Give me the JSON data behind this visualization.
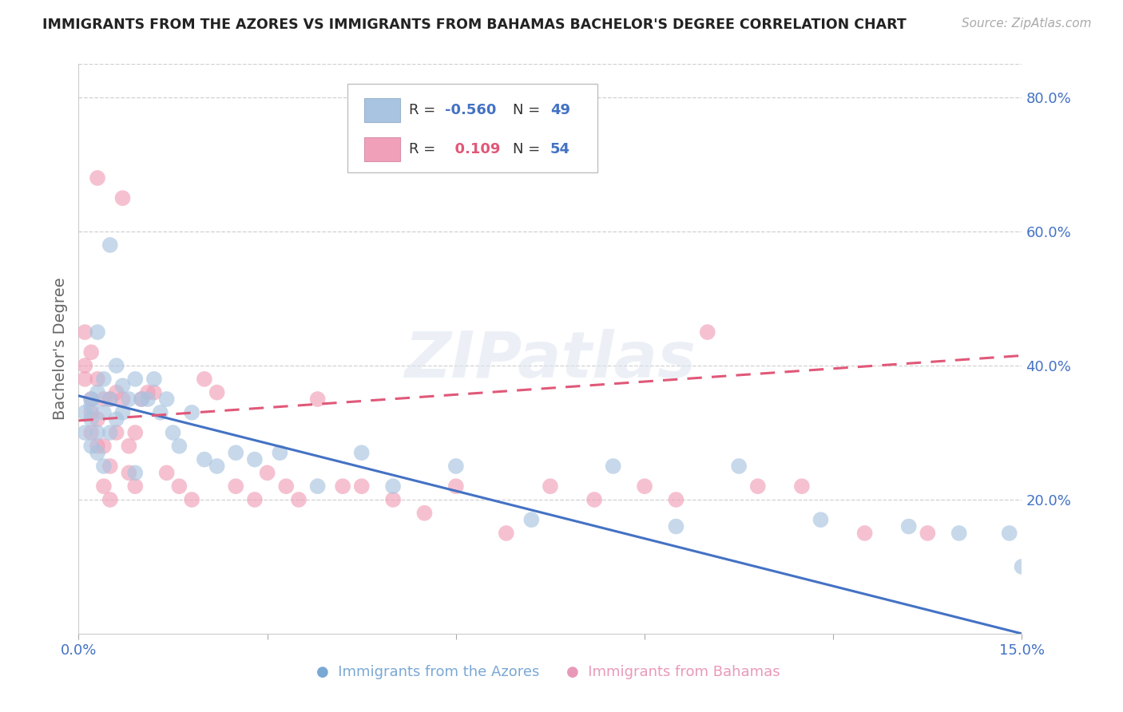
{
  "title": "IMMIGRANTS FROM THE AZORES VS IMMIGRANTS FROM BAHAMAS BACHELOR'S DEGREE CORRELATION CHART",
  "source": "Source: ZipAtlas.com",
  "xlabel_blue": "Immigrants from the Azores",
  "xlabel_pink": "Immigrants from Bahamas",
  "ylabel": "Bachelor's Degree",
  "xlim": [
    0.0,
    0.15
  ],
  "ylim": [
    0.0,
    0.85
  ],
  "legend_r_blue": "-0.560",
  "legend_n_blue": "49",
  "legend_r_pink": "0.109",
  "legend_n_pink": "54",
  "blue_color": "#a8c4e0",
  "pink_color": "#f0a0b8",
  "trendline_blue_color": "#4472c4",
  "trendline_pink_color": "#e05878",
  "watermark": "ZIPatlas",
  "blue_x": [
    0.001,
    0.001,
    0.002,
    0.002,
    0.002,
    0.002,
    0.003,
    0.003,
    0.003,
    0.003,
    0.004,
    0.004,
    0.004,
    0.005,
    0.005,
    0.005,
    0.006,
    0.006,
    0.007,
    0.007,
    0.008,
    0.009,
    0.009,
    0.01,
    0.011,
    0.012,
    0.013,
    0.014,
    0.015,
    0.016,
    0.018,
    0.02,
    0.022,
    0.025,
    0.028,
    0.032,
    0.038,
    0.045,
    0.05,
    0.06,
    0.072,
    0.085,
    0.095,
    0.105,
    0.118,
    0.132,
    0.14,
    0.148,
    0.15
  ],
  "blue_y": [
    0.33,
    0.3,
    0.35,
    0.28,
    0.32,
    0.34,
    0.45,
    0.36,
    0.3,
    0.27,
    0.38,
    0.33,
    0.25,
    0.58,
    0.35,
    0.3,
    0.4,
    0.32,
    0.37,
    0.33,
    0.35,
    0.38,
    0.24,
    0.35,
    0.35,
    0.38,
    0.33,
    0.35,
    0.3,
    0.28,
    0.33,
    0.26,
    0.25,
    0.27,
    0.26,
    0.27,
    0.22,
    0.27,
    0.22,
    0.25,
    0.17,
    0.25,
    0.16,
    0.25,
    0.17,
    0.16,
    0.15,
    0.15,
    0.1
  ],
  "pink_x": [
    0.001,
    0.001,
    0.001,
    0.002,
    0.002,
    0.002,
    0.002,
    0.003,
    0.003,
    0.003,
    0.003,
    0.004,
    0.004,
    0.004,
    0.005,
    0.005,
    0.005,
    0.006,
    0.006,
    0.007,
    0.007,
    0.008,
    0.008,
    0.009,
    0.009,
    0.01,
    0.011,
    0.012,
    0.014,
    0.016,
    0.018,
    0.02,
    0.022,
    0.025,
    0.028,
    0.03,
    0.033,
    0.035,
    0.038,
    0.042,
    0.045,
    0.05,
    0.055,
    0.06,
    0.068,
    0.075,
    0.082,
    0.09,
    0.095,
    0.1,
    0.108,
    0.115,
    0.125,
    0.135
  ],
  "pink_y": [
    0.4,
    0.45,
    0.38,
    0.33,
    0.42,
    0.35,
    0.3,
    0.32,
    0.38,
    0.28,
    0.68,
    0.35,
    0.28,
    0.22,
    0.35,
    0.25,
    0.2,
    0.36,
    0.3,
    0.65,
    0.35,
    0.28,
    0.24,
    0.3,
    0.22,
    0.35,
    0.36,
    0.36,
    0.24,
    0.22,
    0.2,
    0.38,
    0.36,
    0.22,
    0.2,
    0.24,
    0.22,
    0.2,
    0.35,
    0.22,
    0.22,
    0.2,
    0.18,
    0.22,
    0.15,
    0.22,
    0.2,
    0.22,
    0.2,
    0.45,
    0.22,
    0.22,
    0.15,
    0.15
  ],
  "background_color": "#ffffff",
  "grid_color": "#d0d0d0",
  "blue_trend_x0": 0.0,
  "blue_trend_y0": 0.355,
  "blue_trend_x1": 0.15,
  "blue_trend_y1": 0.0,
  "pink_trend_x0": 0.0,
  "pink_trend_y0": 0.318,
  "pink_trend_x1": 0.15,
  "pink_trend_y1": 0.415
}
